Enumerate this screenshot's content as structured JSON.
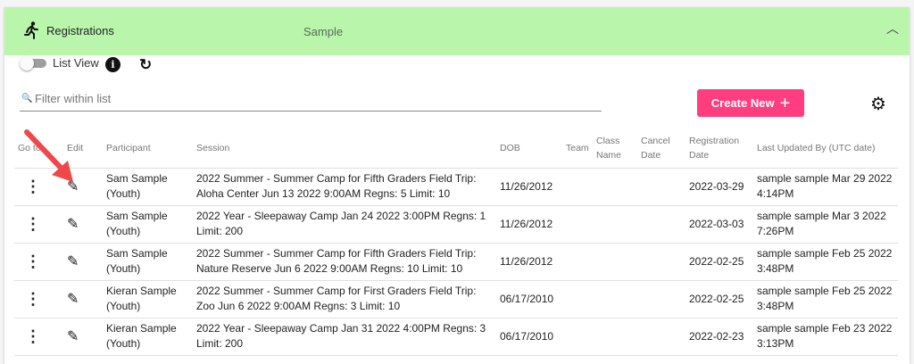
{
  "header": {
    "title": "Registrations",
    "subtitle": "Sample",
    "icon": "running-person-icon"
  },
  "toolbar": {
    "list_view_label": "List View",
    "list_view_on": false,
    "info": "i",
    "refresh": "↻"
  },
  "filter": {
    "placeholder": "Filter within list",
    "value": ""
  },
  "create_label": "Create New",
  "columns": {
    "goto": "Go to",
    "edit": "Edit",
    "participant": "Participant",
    "session": "Session",
    "dob": "DOB",
    "team": "Team",
    "class_name": "Class Name",
    "cancel_date": "Cancel Date",
    "reg_date": "Registration Date",
    "updated": "Last Updated By (UTC date)"
  },
  "rows": [
    {
      "participant": "Sam Sample (Youth)",
      "session": "2022 Summer - Summer Camp for Fifth Graders Field Trip: Aloha Center Jun 13 2022 9:00AM Regns: 5 Limit: 10",
      "dob": "11/26/2012",
      "team": "",
      "class_name": "",
      "cancel_date": "",
      "reg_date": "2022-03-29",
      "updated": "sample sample Mar 29 2022 4:14PM"
    },
    {
      "participant": "Sam Sample (Youth)",
      "session": "2022 Year - Sleepaway Camp Jan 24 2022 3:00PM Regns: 1 Limit: 200",
      "dob": "11/26/2012",
      "team": "",
      "class_name": "",
      "cancel_date": "",
      "reg_date": "2022-03-03",
      "updated": "sample sample Mar 3 2022 7:26PM"
    },
    {
      "participant": "Sam Sample (Youth)",
      "session": "2022 Summer - Summer Camp for Fifth Graders Field Trip: Nature Reserve Jun 6 2022 9:00AM Regns: 10 Limit: 10",
      "dob": "11/26/2012",
      "team": "",
      "class_name": "",
      "cancel_date": "",
      "reg_date": "2022-02-25",
      "updated": "sample sample Feb 25 2022 3:48PM"
    },
    {
      "participant": "Kieran Sample (Youth)",
      "session": "2022 Summer - Summer Camp for First Graders Field Trip: Zoo Jun 6 2022 9:00AM Regns: 3 Limit: 10",
      "dob": "06/17/2010",
      "team": "",
      "class_name": "",
      "cancel_date": "",
      "reg_date": "2022-02-25",
      "updated": "sample sample Feb 25 2022 3:48PM"
    },
    {
      "participant": "Kieran Sample (Youth)",
      "session": "2022 Year - Sleepaway Camp Jan 31 2022 4:00PM Regns: 3 Limit: 200",
      "dob": "06/17/2010",
      "team": "",
      "class_name": "",
      "cancel_date": "",
      "reg_date": "2022-02-23",
      "updated": "sample sample Feb 23 2022 3:13PM"
    }
  ],
  "colors": {
    "header_bg": "#b9f6ab",
    "accent": "#ff3d7f",
    "annotation_arrow": "#f0474a"
  }
}
